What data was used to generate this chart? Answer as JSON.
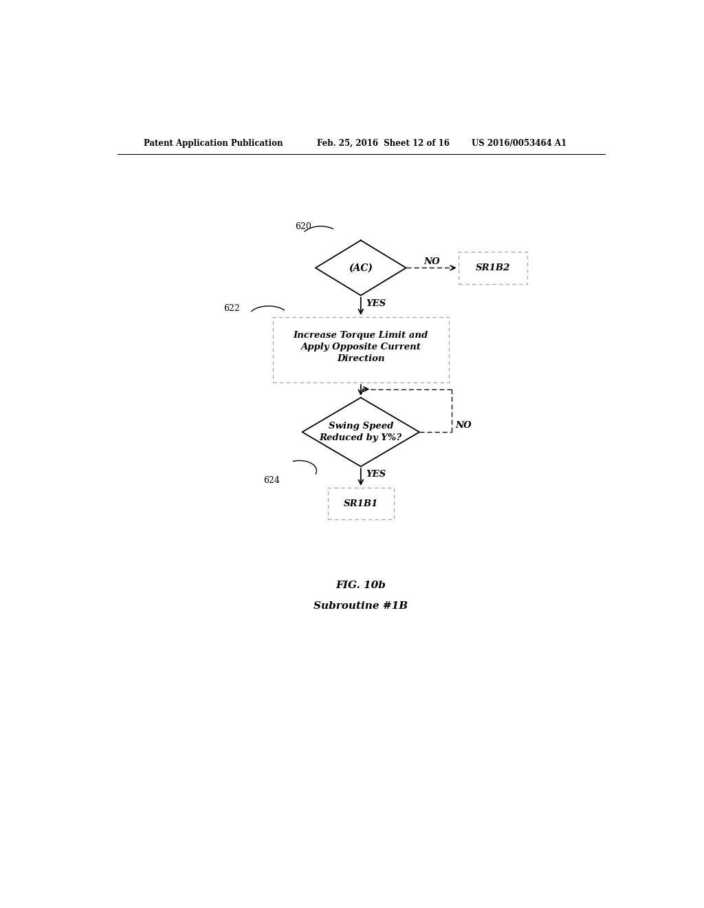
{
  "bg_color": "#ffffff",
  "header_left": "Patent Application Publication",
  "header_mid": "Feb. 25, 2016  Sheet 12 of 16",
  "header_right": "US 2016/0053464 A1",
  "fig_label_line1": "FIG. 10b",
  "fig_label_line2": "Subroutine #1B",
  "diamond1_label": "(AC)",
  "diamond1_ref": "620",
  "diamond2_label": "Swing Speed\nReduced by Y%?",
  "diamond2_ref": "624",
  "rect1_label": "Increase Torque Limit and\nApply Opposite Current\nDirection",
  "rect1_ref": "622",
  "rect2_label": "SR1B2",
  "rect3_label": "SR1B1",
  "arrow_no1_label": "NO",
  "arrow_yes1_label": "YES",
  "arrow_no2_label": "NO",
  "arrow_yes2_label": "YES"
}
